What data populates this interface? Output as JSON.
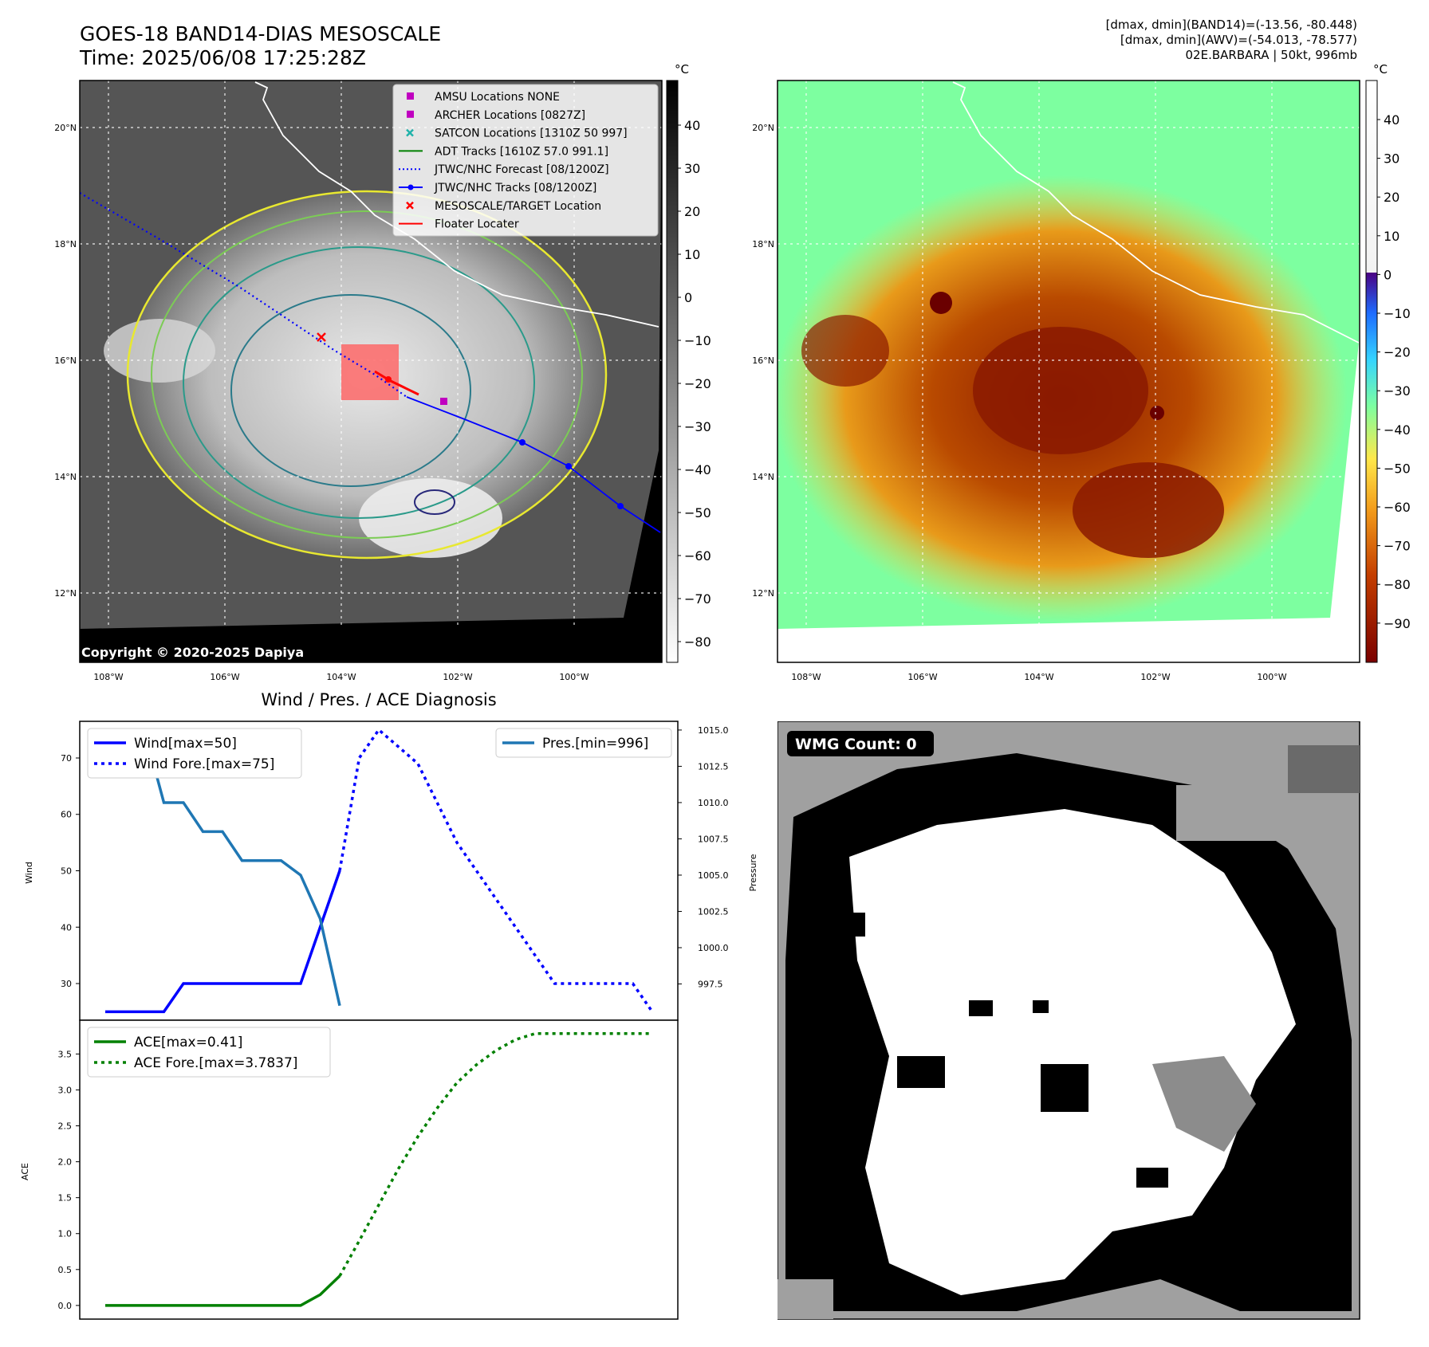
{
  "header": {
    "title_line1": "GOES-18 BAND14-DIAS MESOSCALE",
    "title_line2": "Time: 2025/06/08 17:25:28Z",
    "info_line1": "[dmax, dmin](BAND14)=(-13.56, -80.448)",
    "info_line2": "[dmax, dmin](AWV)=(-54.013, -78.577)",
    "info_line3": "02E.BARBARA | 50kt, 996mb"
  },
  "map": {
    "lat_labels": [
      "20°N",
      "18°N",
      "16°N",
      "14°N",
      "12°N"
    ],
    "lon_labels": [
      "108°W",
      "106°W",
      "104°W",
      "102°W",
      "100°W"
    ],
    "copyright": "Copyright © 2020-2025 Dapiya",
    "legend": [
      {
        "label": "AMSU Locations NONE",
        "color": "#c000c0",
        "marker": "square"
      },
      {
        "label": "ARCHER Locations [0827Z]",
        "color": "#c000c0",
        "marker": "square"
      },
      {
        "label": "SATCON Locations [1310Z 50 997]",
        "color": "#20b2aa",
        "marker": "x"
      },
      {
        "label": "ADT Tracks [1610Z 57.0 991.1]",
        "color": "#008000",
        "marker": "line"
      },
      {
        "label": "JTWC/NHC Forecast [08/1200Z]",
        "color": "#0000ff",
        "marker": "dotted"
      },
      {
        "label": "JTWC/NHC Tracks [08/1200Z]",
        "color": "#0000ff",
        "marker": "line-dot"
      },
      {
        "label": "MESOSCALE/TARGET Location",
        "color": "#ff0000",
        "marker": "x"
      },
      {
        "label": "Floater Locater",
        "color": "#ff0000",
        "marker": "line"
      }
    ],
    "colorbar_unit": "°C",
    "gray_colorbar_ticks": [
      "40",
      "30",
      "20",
      "10",
      "0",
      "−10",
      "−20",
      "−30",
      "−40",
      "−50",
      "−60",
      "−70",
      "−80"
    ],
    "color_colorbar_ticks": [
      "40",
      "30",
      "20",
      "10",
      "0",
      "−10",
      "−20",
      "−30",
      "−40",
      "−50",
      "−60",
      "−70",
      "−80",
      "−90"
    ]
  },
  "diagnosis_title": "Wind / Pres. / ACE Diagnosis",
  "wmg_label": "WMG Count: 0",
  "chart_data": [
    {
      "type": "line",
      "ylabel": "Wind",
      "ylabel_right": "Pressure",
      "y_ticks": [
        "30",
        "40",
        "50",
        "60",
        "70"
      ],
      "y_ticks_right": [
        "997.5",
        "1000.0",
        "1002.5",
        "1005.0",
        "1007.5",
        "1010.0",
        "1012.5",
        "1015.0"
      ],
      "ylim": [
        23.5,
        76.5
      ],
      "ylim_right": [
        995.0,
        1015.6
      ],
      "series": [
        {
          "name": "Wind[max=50]",
          "color": "#0000ff",
          "style": "solid",
          "x": [
            0,
            1,
            2,
            3,
            4,
            5,
            6,
            7,
            8,
            9,
            10,
            11,
            12
          ],
          "values": [
            25,
            25,
            25,
            25,
            30,
            30,
            30,
            30,
            30,
            30,
            30,
            40,
            50
          ]
        },
        {
          "name": "Wind Fore.[max=75]",
          "color": "#0000ff",
          "style": "dotted",
          "x": [
            12,
            13,
            14,
            15,
            16,
            17,
            18,
            19,
            20,
            21,
            22,
            23,
            24,
            25,
            26,
            27,
            28
          ],
          "values": [
            50,
            70,
            75,
            72,
            69,
            62,
            55,
            50,
            45,
            40,
            35,
            30,
            30,
            30,
            30,
            30,
            25
          ]
        },
        {
          "name": "Pres.[min=996]",
          "color": "#1f77b4",
          "style": "solid",
          "x": [
            0,
            1,
            2,
            3,
            4,
            5,
            6,
            7,
            8,
            9,
            10,
            11,
            12
          ],
          "values": [
            1015,
            1015,
            1015,
            1010,
            1010,
            1008,
            1008,
            1006,
            1006,
            1006,
            1005,
            1002,
            996
          ]
        }
      ]
    },
    {
      "type": "line",
      "ylabel": "ACE",
      "y_ticks": [
        "0.0",
        "0.5",
        "1.0",
        "1.5",
        "2.0",
        "2.5",
        "3.0",
        "3.5"
      ],
      "ylim": [
        -0.19,
        3.97
      ],
      "series": [
        {
          "name": "ACE[max=0.41]",
          "color": "#008000",
          "style": "solid",
          "x": [
            0,
            1,
            2,
            3,
            4,
            5,
            6,
            7,
            8,
            9,
            10,
            11,
            12
          ],
          "values": [
            0,
            0,
            0,
            0,
            0,
            0,
            0,
            0,
            0,
            0,
            0,
            0.15,
            0.41
          ]
        },
        {
          "name": "ACE Fore.[max=3.7837]",
          "color": "#008000",
          "style": "dotted",
          "x": [
            12,
            13,
            14,
            15,
            16,
            17,
            18,
            19,
            20,
            21,
            22,
            23,
            24,
            25,
            26,
            27,
            28
          ],
          "values": [
            0.41,
            0.9,
            1.4,
            1.9,
            2.35,
            2.75,
            3.1,
            3.35,
            3.55,
            3.7,
            3.7837,
            3.7837,
            3.7837,
            3.7837,
            3.7837,
            3.7837,
            3.7837
          ]
        }
      ]
    }
  ]
}
